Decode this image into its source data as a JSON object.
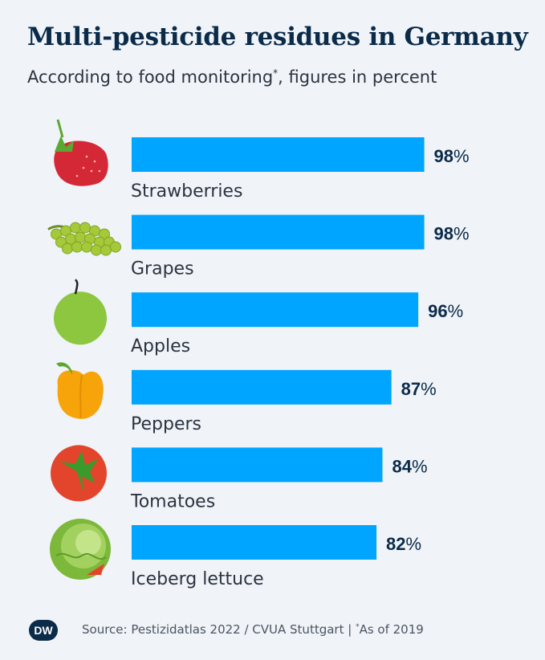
{
  "header": {
    "title": "Multi-pesticide residues in Germany",
    "subtitle_main": "According to food monitoring",
    "subtitle_mark": "*",
    "subtitle_rest": ", figures in percent"
  },
  "footer": {
    "logo": "DW",
    "source_text": "Source: Pestizidatlas 2022 / CVUA Stuttgart | ",
    "note_mark": "*",
    "note_text": "As of 2019"
  },
  "colors": {
    "bar": "#00a5ff",
    "value_text": "#0a2b4a",
    "label_text": "#2b3440"
  },
  "chart_data": {
    "type": "bar",
    "orientation": "horizontal",
    "categories": [
      "Strawberries",
      "Grapes",
      "Apples",
      "Peppers",
      "Tomatoes",
      "Iceberg lettuce"
    ],
    "values": [
      98,
      98,
      96,
      87,
      84,
      82
    ],
    "value_labels": [
      "98",
      "98",
      "96",
      "87",
      "84",
      "82"
    ],
    "unit": "%",
    "icons": [
      "strawberry-icon",
      "grapes-icon",
      "apple-icon",
      "pepper-icon",
      "tomato-icon",
      "lettuce-icon"
    ],
    "xlim": [
      0,
      100
    ],
    "grid": false,
    "legend": "none"
  }
}
